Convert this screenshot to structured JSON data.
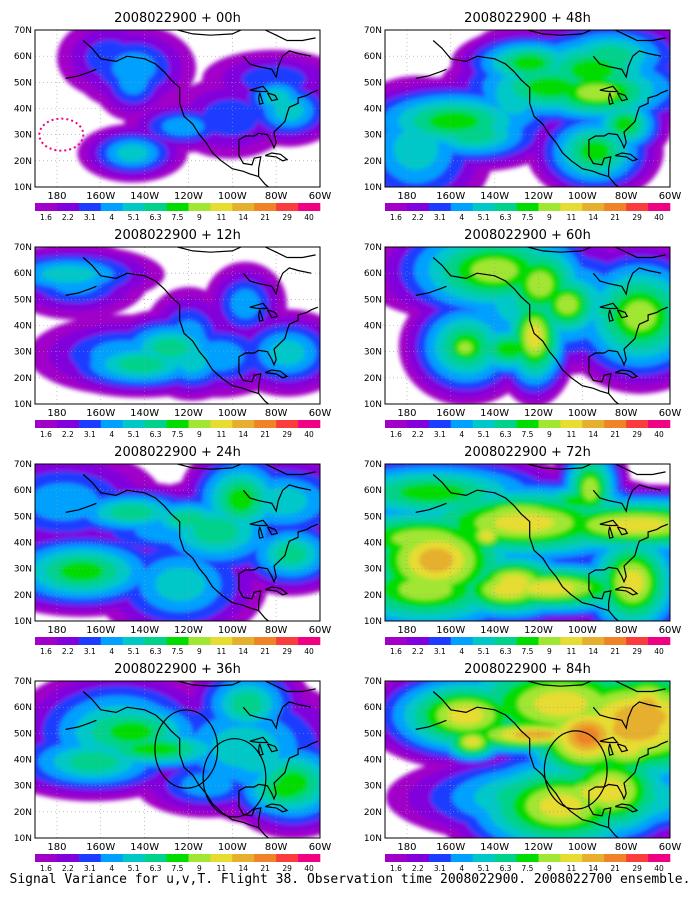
{
  "panels": [
    {
      "title": "2008022900 + 00h",
      "intensity": 0.6,
      "seed": 3,
      "circles": [],
      "dotted_circle": true
    },
    {
      "title": "2008022900 + 48h",
      "intensity": 1.5,
      "seed": 11,
      "circles": [],
      "dotted_circle": false
    },
    {
      "title": "2008022900 + 12h",
      "intensity": 0.9,
      "seed": 7,
      "circles": [],
      "dotted_circle": false
    },
    {
      "title": "2008022900 + 60h",
      "intensity": 1.8,
      "seed": 19,
      "circles": [],
      "dotted_circle": false
    },
    {
      "title": "2008022900 + 24h",
      "intensity": 1.1,
      "seed": 23,
      "circles": [],
      "dotted_circle": false
    },
    {
      "title": "2008022900 + 72h",
      "intensity": 2.2,
      "seed": 29,
      "circles": [],
      "dotted_circle": false
    },
    {
      "title": "2008022900 + 36h",
      "intensity": 1.3,
      "seed": 31,
      "circles": [
        {
          "lon": -121,
          "lat": 44,
          "r_deg": 6.5
        },
        {
          "lon": -99,
          "lat": 33,
          "r_deg": 6.5
        }
      ],
      "dotted_circle": false
    },
    {
      "title": "2008022900 + 84h",
      "intensity": 2.6,
      "seed": 37,
      "circles": [
        {
          "lon": -103,
          "lat": 36,
          "r_deg": 6.5
        }
      ],
      "dotted_circle": false
    }
  ],
  "axes": {
    "lat_labels": [
      "70N",
      "60N",
      "50N",
      "40N",
      "30N",
      "20N",
      "10N"
    ],
    "lon_labels": [
      "180",
      "160W",
      "140W",
      "120W",
      "100W",
      "80W",
      "60W"
    ],
    "lat_range": [
      10,
      70
    ],
    "lon_range": [
      -190,
      -60
    ]
  },
  "colorbar": {
    "labels": [
      "1.6",
      "2.2",
      "3.1",
      "4",
      "5.1",
      "6.3",
      "7.5",
      "9",
      "11",
      "14",
      "21",
      "29",
      "40"
    ],
    "colors": [
      "#a000c8",
      "#8200dc",
      "#1e3cff",
      "#00a0ff",
      "#00c8c8",
      "#00d28c",
      "#00dc00",
      "#a0e632",
      "#e6dc32",
      "#e6af2d",
      "#f08228",
      "#fa3c3c",
      "#f00082"
    ]
  },
  "caption": "Signal Variance for u,v,T. Flight 38. Observation time 2008022900. 2008022700 ensemble."
}
